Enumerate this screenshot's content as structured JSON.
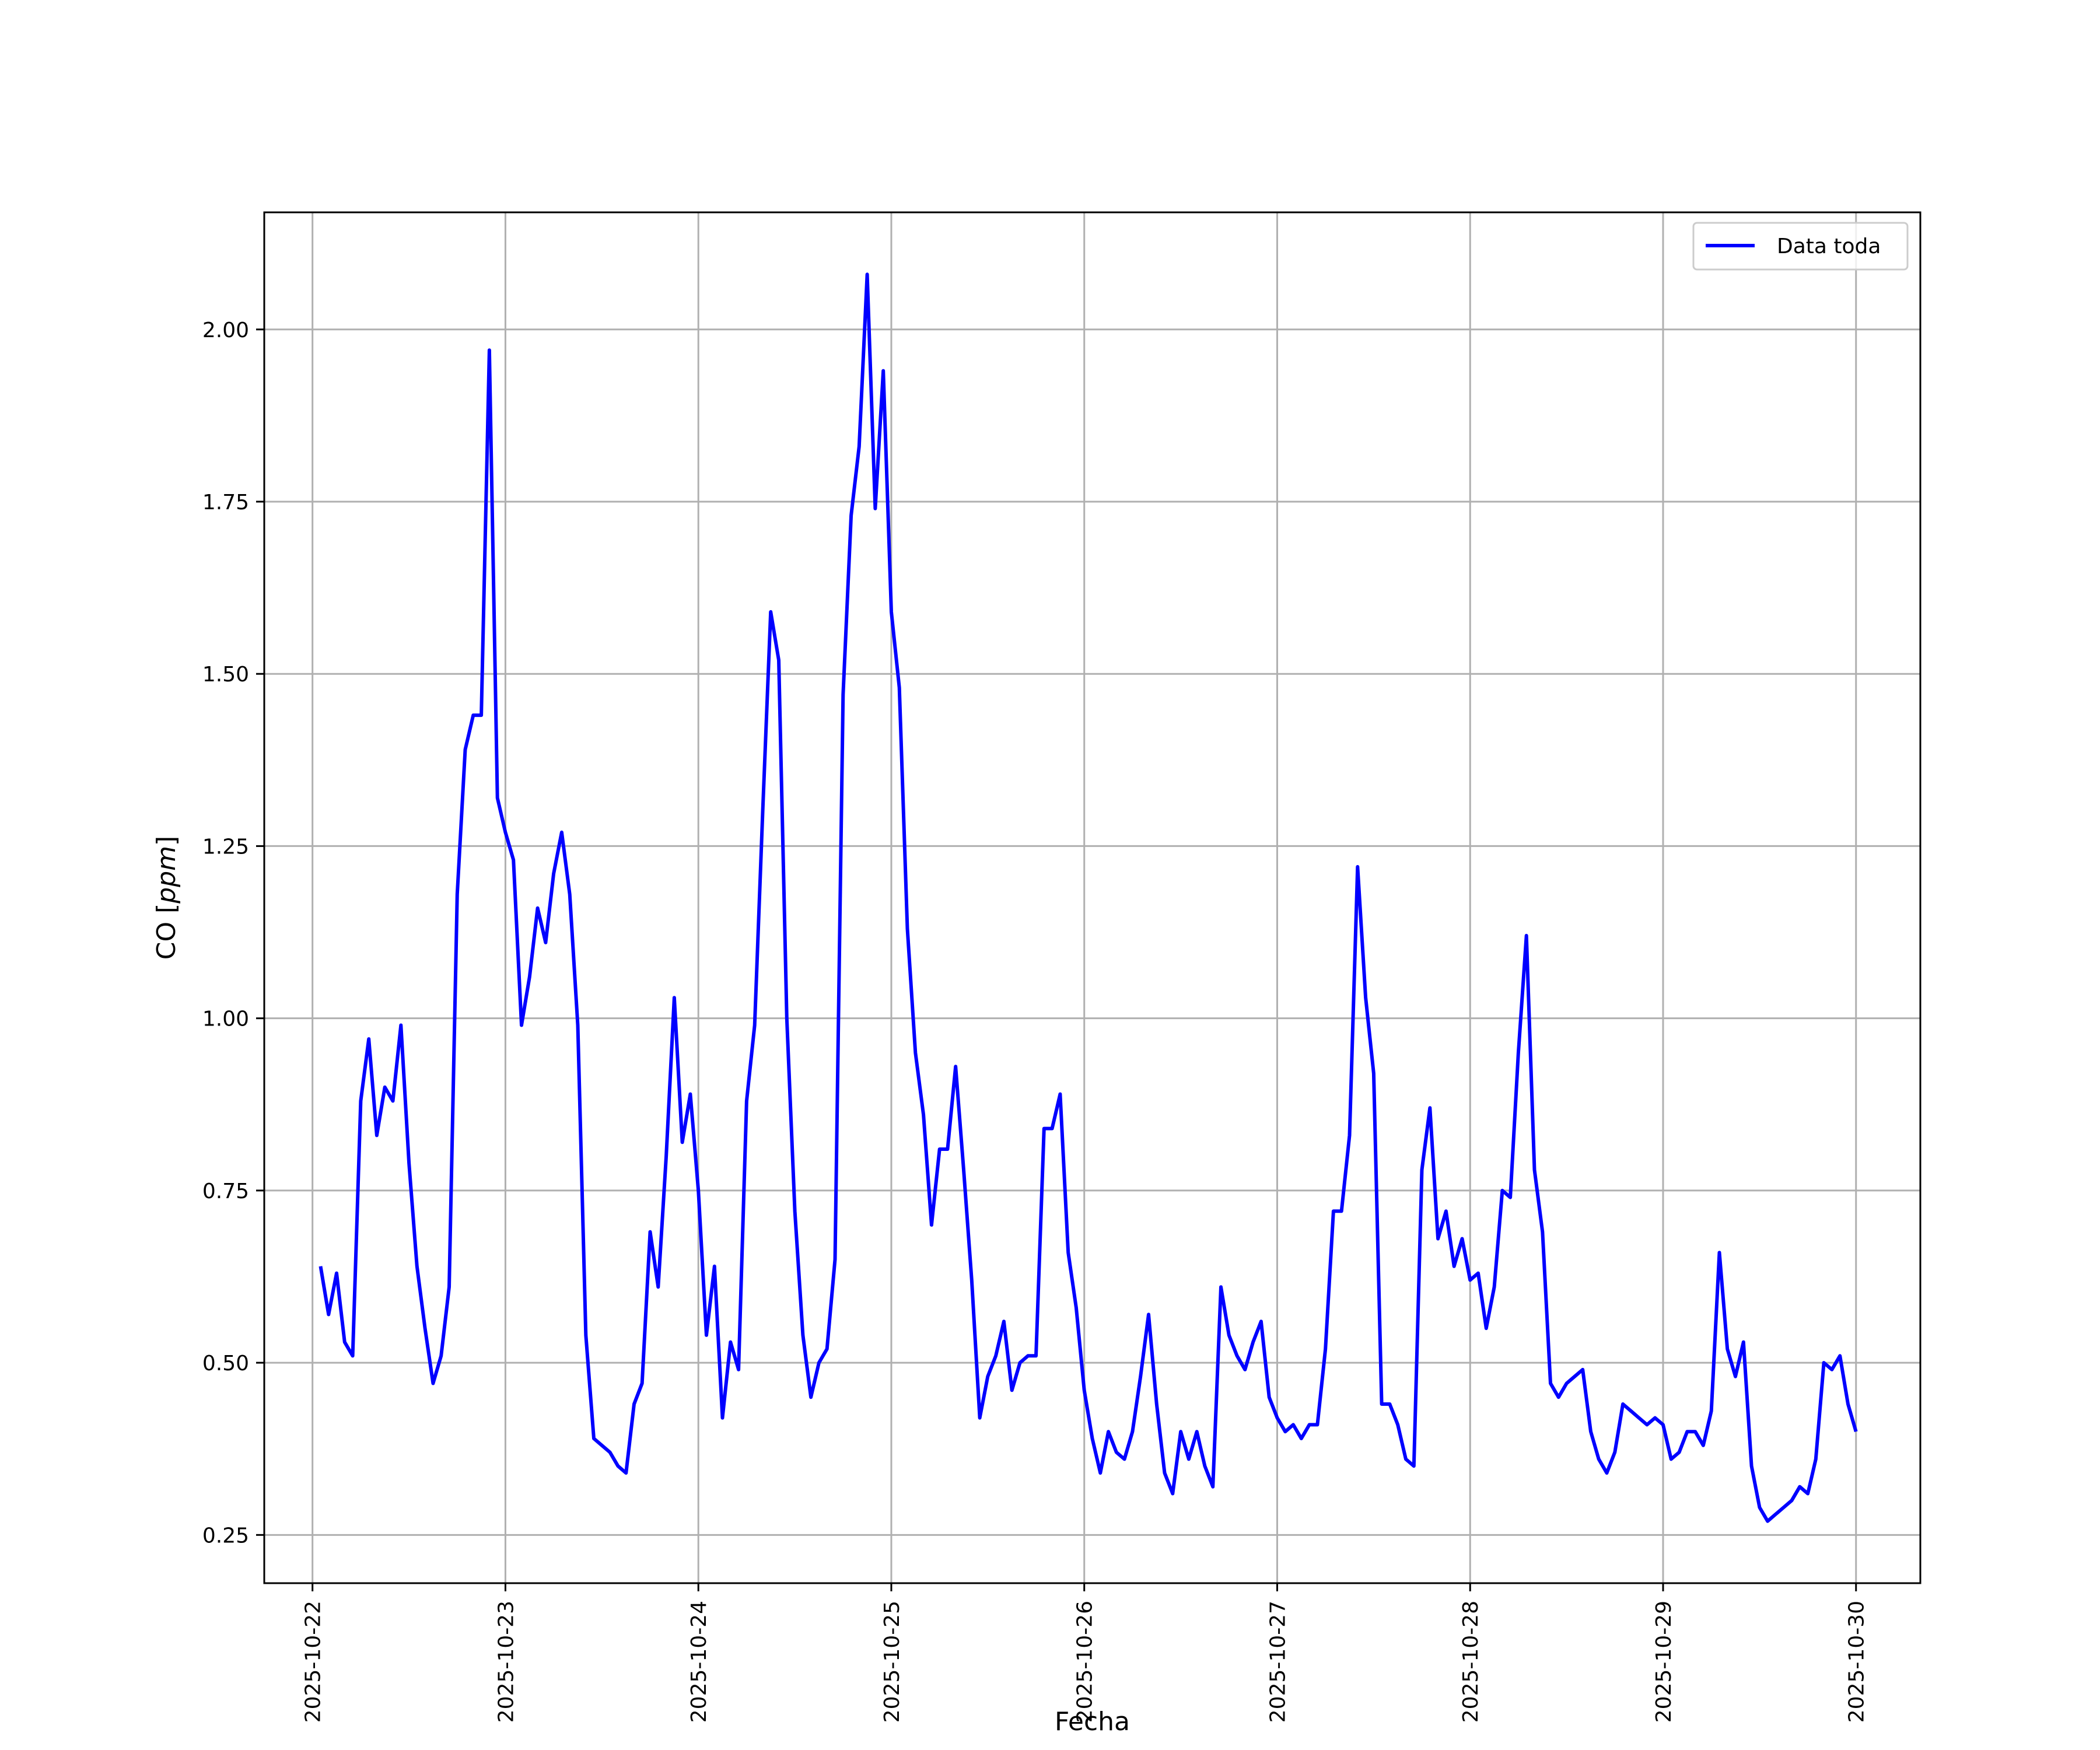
{
  "chart_data": {
    "type": "line",
    "title": "",
    "xlabel": "Fecha",
    "ylabel_prefix": "CO [",
    "ylabel_unit": "ppm",
    "ylabel_suffix": "]",
    "x_range": [
      "2025-10-21T18:00",
      "2025-10-30T08:00"
    ],
    "ylim": [
      0.18,
      2.17
    ],
    "yticks": [
      0.25,
      0.5,
      0.75,
      1.0,
      1.25,
      1.5,
      1.75,
      2.0
    ],
    "ytick_labels": [
      "0.25",
      "0.50",
      "0.75",
      "1.00",
      "1.25",
      "1.50",
      "1.75",
      "2.00"
    ],
    "xticks": [
      "2025-10-22",
      "2025-10-23",
      "2025-10-24",
      "2025-10-25",
      "2025-10-26",
      "2025-10-27",
      "2025-10-28",
      "2025-10-29",
      "2025-10-30"
    ],
    "grid": true,
    "legend_position": "top-right",
    "colors": {
      "line": "#0000ff",
      "grid": "#b0b0b0"
    },
    "series": [
      {
        "name": "Data toda",
        "x": [
          "2025-10-22T01:00",
          "2025-10-22T02:00",
          "2025-10-22T03:00",
          "2025-10-22T04:00",
          "2025-10-22T05:00",
          "2025-10-22T06:00",
          "2025-10-22T07:00",
          "2025-10-22T08:00",
          "2025-10-22T09:00",
          "2025-10-22T10:00",
          "2025-10-22T11:00",
          "2025-10-22T12:00",
          "2025-10-22T13:00",
          "2025-10-22T14:00",
          "2025-10-22T15:00",
          "2025-10-22T16:00",
          "2025-10-22T17:00",
          "2025-10-22T18:00",
          "2025-10-22T19:00",
          "2025-10-22T20:00",
          "2025-10-22T21:00",
          "2025-10-22T22:00",
          "2025-10-22T23:00",
          "2025-10-23T00:00",
          "2025-10-23T01:00",
          "2025-10-23T02:00",
          "2025-10-23T03:00",
          "2025-10-23T04:00",
          "2025-10-23T05:00",
          "2025-10-23T06:00",
          "2025-10-23T07:00",
          "2025-10-23T08:00",
          "2025-10-23T09:00",
          "2025-10-23T10:00",
          "2025-10-23T11:00",
          "2025-10-23T12:00",
          "2025-10-23T13:00",
          "2025-10-23T14:00",
          "2025-10-23T15:00",
          "2025-10-23T16:00",
          "2025-10-23T17:00",
          "2025-10-23T18:00",
          "2025-10-23T19:00",
          "2025-10-23T20:00",
          "2025-10-23T21:00",
          "2025-10-23T22:00",
          "2025-10-23T23:00",
          "2025-10-24T00:00",
          "2025-10-24T01:00",
          "2025-10-24T02:00",
          "2025-10-24T03:00",
          "2025-10-24T04:00",
          "2025-10-24T05:00",
          "2025-10-24T06:00",
          "2025-10-24T07:00",
          "2025-10-24T08:00",
          "2025-10-24T09:00",
          "2025-10-24T10:00",
          "2025-10-24T11:00",
          "2025-10-24T12:00",
          "2025-10-24T13:00",
          "2025-10-24T14:00",
          "2025-10-24T15:00",
          "2025-10-24T16:00",
          "2025-10-24T17:00",
          "2025-10-24T18:00",
          "2025-10-24T19:00",
          "2025-10-24T20:00",
          "2025-10-24T21:00",
          "2025-10-24T22:00",
          "2025-10-24T23:00",
          "2025-10-25T00:00",
          "2025-10-25T01:00",
          "2025-10-25T02:00",
          "2025-10-25T03:00",
          "2025-10-25T04:00",
          "2025-10-25T05:00",
          "2025-10-25T06:00",
          "2025-10-25T07:00",
          "2025-10-25T08:00",
          "2025-10-25T09:00",
          "2025-10-25T10:00",
          "2025-10-25T11:00",
          "2025-10-25T12:00",
          "2025-10-25T13:00",
          "2025-10-25T14:00",
          "2025-10-25T15:00",
          "2025-10-25T16:00",
          "2025-10-25T17:00",
          "2025-10-25T18:00",
          "2025-10-25T19:00",
          "2025-10-25T20:00",
          "2025-10-25T21:00",
          "2025-10-25T22:00",
          "2025-10-25T23:00",
          "2025-10-26T00:00",
          "2025-10-26T01:00",
          "2025-10-26T02:00",
          "2025-10-26T03:00",
          "2025-10-26T04:00",
          "2025-10-26T05:00",
          "2025-10-26T06:00",
          "2025-10-26T07:00",
          "2025-10-26T08:00",
          "2025-10-26T09:00",
          "2025-10-26T10:00",
          "2025-10-26T11:00",
          "2025-10-26T12:00",
          "2025-10-26T13:00",
          "2025-10-26T14:00",
          "2025-10-26T15:00",
          "2025-10-26T16:00",
          "2025-10-26T17:00",
          "2025-10-26T18:00",
          "2025-10-26T19:00",
          "2025-10-26T20:00",
          "2025-10-26T21:00",
          "2025-10-26T22:00",
          "2025-10-26T23:00",
          "2025-10-27T00:00",
          "2025-10-27T01:00",
          "2025-10-27T02:00",
          "2025-10-27T03:00",
          "2025-10-27T04:00",
          "2025-10-27T05:00",
          "2025-10-27T06:00",
          "2025-10-27T07:00",
          "2025-10-27T08:00",
          "2025-10-27T09:00",
          "2025-10-27T10:00",
          "2025-10-27T11:00",
          "2025-10-27T12:00",
          "2025-10-27T13:00",
          "2025-10-27T14:00",
          "2025-10-27T15:00",
          "2025-10-27T16:00",
          "2025-10-27T17:00",
          "2025-10-27T18:00",
          "2025-10-27T19:00",
          "2025-10-27T20:00",
          "2025-10-27T21:00",
          "2025-10-27T22:00",
          "2025-10-27T23:00",
          "2025-10-28T00:00",
          "2025-10-28T01:00",
          "2025-10-28T02:00",
          "2025-10-28T03:00",
          "2025-10-28T04:00",
          "2025-10-28T05:00",
          "2025-10-28T06:00",
          "2025-10-28T07:00",
          "2025-10-28T08:00",
          "2025-10-28T09:00",
          "2025-10-28T10:00",
          "2025-10-28T11:00",
          "2025-10-28T12:00",
          "2025-10-28T13:00",
          "2025-10-28T14:00",
          "2025-10-28T15:00",
          "2025-10-28T16:00",
          "2025-10-28T17:00",
          "2025-10-28T18:00",
          "2025-10-28T19:00",
          "2025-10-28T20:00",
          "2025-10-28T21:00",
          "2025-10-28T22:00",
          "2025-10-28T23:00",
          "2025-10-29T00:00",
          "2025-10-29T01:00",
          "2025-10-29T02:00",
          "2025-10-29T03:00",
          "2025-10-29T04:00",
          "2025-10-29T05:00",
          "2025-10-29T06:00",
          "2025-10-29T07:00",
          "2025-10-29T08:00",
          "2025-10-29T09:00",
          "2025-10-29T10:00",
          "2025-10-29T11:00",
          "2025-10-29T12:00",
          "2025-10-29T13:00",
          "2025-10-29T14:00",
          "2025-10-29T15:00",
          "2025-10-29T16:00",
          "2025-10-29T17:00",
          "2025-10-29T18:00",
          "2025-10-29T19:00",
          "2025-10-29T20:00",
          "2025-10-29T21:00",
          "2025-10-29T22:00",
          "2025-10-29T23:00",
          "2025-10-30T00:00"
        ],
        "values": [
          0.64,
          0.57,
          0.63,
          0.53,
          0.51,
          0.88,
          0.97,
          0.83,
          0.9,
          0.88,
          0.99,
          0.79,
          0.64,
          0.55,
          0.47,
          0.51,
          0.61,
          1.18,
          1.39,
          1.44,
          1.44,
          1.97,
          1.32,
          1.27,
          1.23,
          0.99,
          1.06,
          1.16,
          1.11,
          1.21,
          1.27,
          1.18,
          0.99,
          0.54,
          0.39,
          0.38,
          0.37,
          0.35,
          0.34,
          0.44,
          0.47,
          0.69,
          0.61,
          0.8,
          1.03,
          0.82,
          0.89,
          0.75,
          0.54,
          0.64,
          0.42,
          0.53,
          0.49,
          0.88,
          0.99,
          1.3,
          1.59,
          1.52,
          1.0,
          0.72,
          0.54,
          0.45,
          0.5,
          0.52,
          0.65,
          1.47,
          1.73,
          1.83,
          2.08,
          1.74,
          1.94,
          1.59,
          1.48,
          1.13,
          0.95,
          0.86,
          0.7,
          0.81,
          0.81,
          0.93,
          0.78,
          0.62,
          0.42,
          0.48,
          0.51,
          0.56,
          0.46,
          0.5,
          0.51,
          0.51,
          0.84,
          0.84,
          0.89,
          0.66,
          0.58,
          0.46,
          0.39,
          0.34,
          0.4,
          0.37,
          0.36,
          0.4,
          0.48,
          0.57,
          0.44,
          0.34,
          0.31,
          0.4,
          0.36,
          0.4,
          0.35,
          0.32,
          0.61,
          0.54,
          0.51,
          0.49,
          0.53,
          0.56,
          0.45,
          0.42,
          0.4,
          0.41,
          0.39,
          0.41,
          0.41,
          0.52,
          0.72,
          0.72,
          0.83,
          1.22,
          1.03,
          0.92,
          0.44,
          0.44,
          0.41,
          0.36,
          0.35,
          0.78,
          0.87,
          0.68,
          0.72,
          0.64,
          0.68,
          0.62,
          0.63,
          0.55,
          0.61,
          0.75,
          0.74,
          0.95,
          1.12,
          0.78,
          0.69,
          0.47,
          0.45,
          0.47,
          0.48,
          0.49,
          0.4,
          0.36,
          0.34,
          0.37,
          0.44,
          0.43,
          0.42,
          0.41,
          0.42,
          0.41,
          0.36,
          0.37,
          0.4,
          0.4,
          0.38,
          0.43,
          0.66,
          0.52,
          0.48,
          0.53,
          0.35,
          0.29,
          0.27,
          0.28,
          0.29,
          0.3,
          0.32,
          0.31,
          0.36,
          0.5,
          0.49,
          0.51,
          0.44,
          0.4
        ]
      }
    ]
  }
}
